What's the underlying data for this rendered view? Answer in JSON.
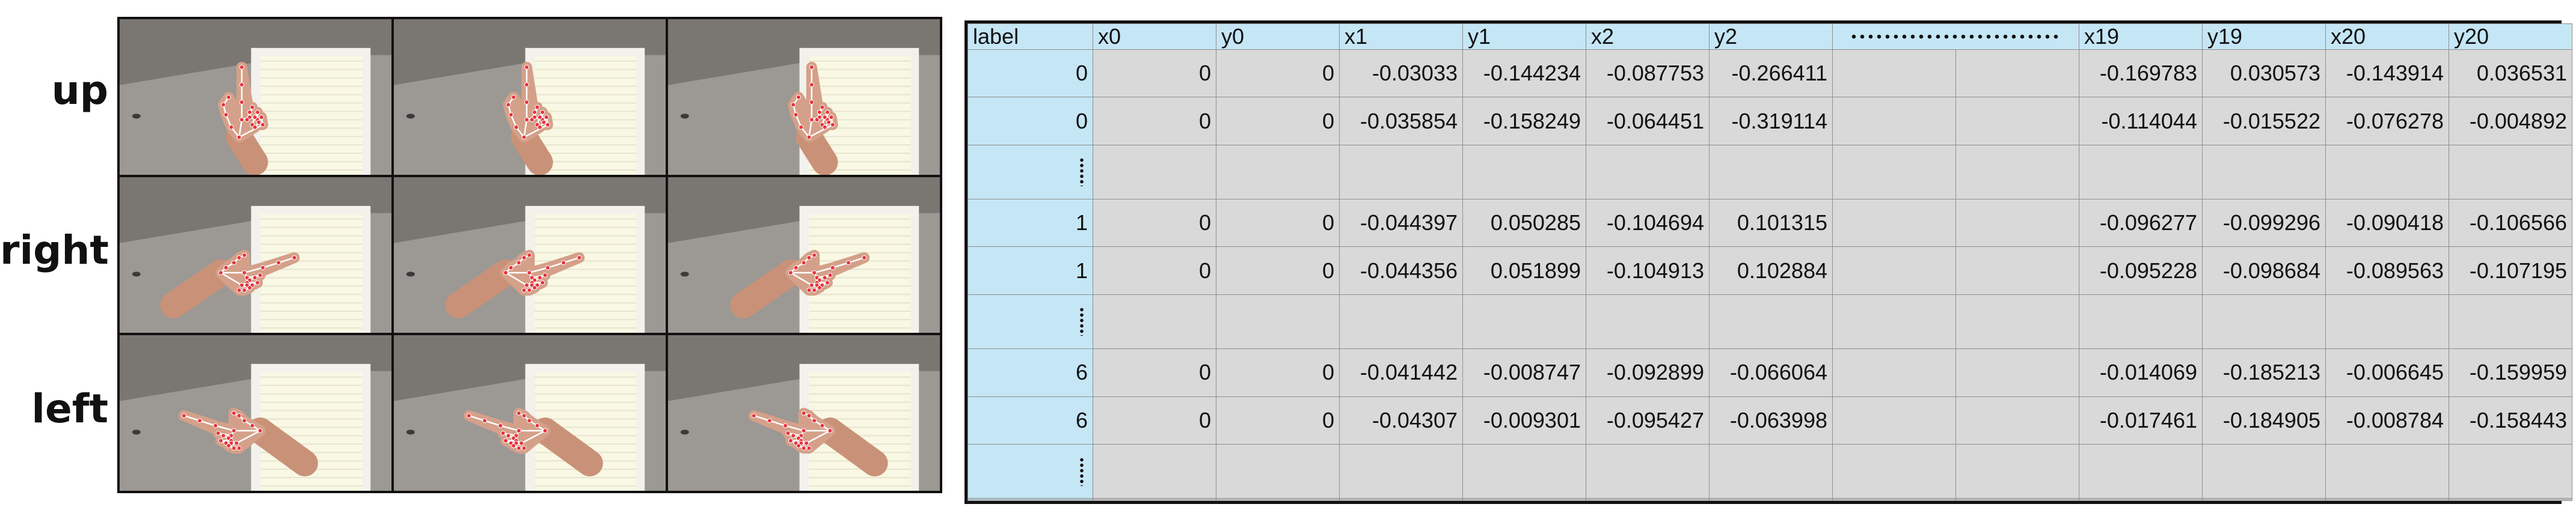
{
  "gestures": [
    {
      "label": "up",
      "direction": "up"
    },
    {
      "label": "right",
      "direction": "right"
    },
    {
      "label": "left",
      "direction": "left"
    }
  ],
  "table": {
    "headers": [
      "label",
      "x0",
      "y0",
      "x1",
      "y1",
      "x2",
      "y2",
      "",
      "",
      "x19",
      "y19",
      "x20",
      "y20"
    ],
    "gap_header": "···············",
    "rows": [
      {
        "type": "data",
        "cells": [
          "0",
          "0",
          "0",
          "-0.03033",
          "-0.144234",
          "-0.087753",
          "-0.266411",
          "",
          "",
          "-0.169783",
          "0.030573",
          "-0.143914",
          "0.036531"
        ]
      },
      {
        "type": "data",
        "cells": [
          "0",
          "0",
          "0",
          "-0.035854",
          "-0.158249",
          "-0.064451",
          "-0.319114",
          "",
          "",
          "-0.114044",
          "-0.015522",
          "-0.076278",
          "-0.004892"
        ]
      },
      {
        "type": "ellipsis"
      },
      {
        "type": "data",
        "cells": [
          "1",
          "0",
          "0",
          "-0.044397",
          "0.050285",
          "-0.104694",
          "0.101315",
          "",
          "",
          "-0.096277",
          "-0.099296",
          "-0.090418",
          "-0.106566"
        ]
      },
      {
        "type": "data",
        "cells": [
          "1",
          "0",
          "0",
          "-0.044356",
          "0.051899",
          "-0.104913",
          "0.102884",
          "",
          "",
          "-0.095228",
          "-0.098684",
          "-0.089563",
          "-0.107195"
        ]
      },
      {
        "type": "ellipsis"
      },
      {
        "type": "data",
        "cells": [
          "6",
          "0",
          "0",
          "-0.041442",
          "-0.008747",
          "-0.092899",
          "-0.066064",
          "",
          "",
          "-0.014069",
          "-0.185213",
          "-0.006645",
          "-0.159959"
        ]
      },
      {
        "type": "data",
        "cells": [
          "6",
          "0",
          "0",
          "-0.04307",
          "-0.009301",
          "-0.095427",
          "-0.063998",
          "",
          "",
          "-0.017461",
          "-0.184905",
          "-0.008784",
          "-0.158443"
        ]
      },
      {
        "type": "ellipsis"
      },
      {
        "type": "blank"
      },
      {
        "type": "blank"
      }
    ]
  }
}
